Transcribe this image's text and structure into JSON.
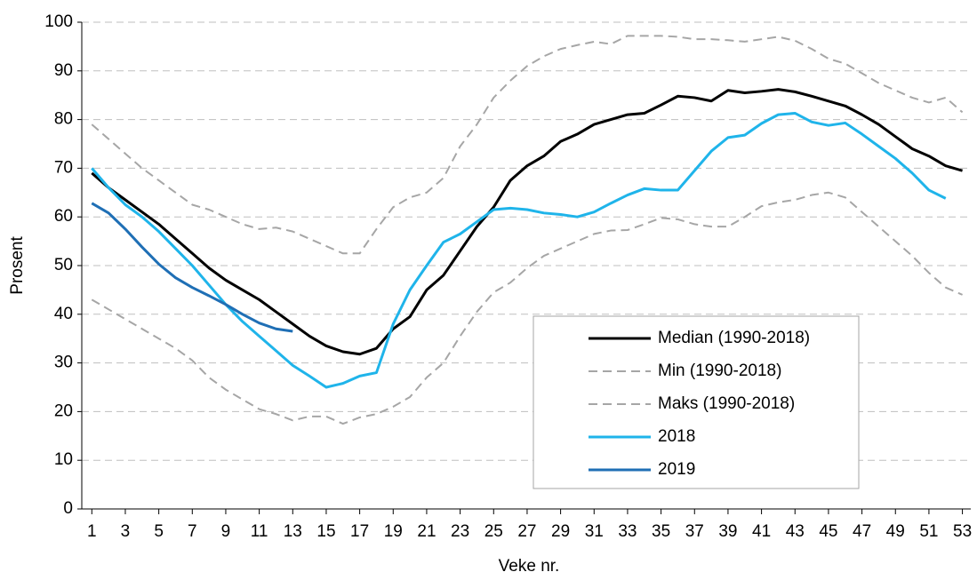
{
  "chart_data": {
    "type": "line",
    "x_label": "Veke nr.",
    "y_label": "Prosent",
    "x": [
      1,
      2,
      3,
      4,
      5,
      6,
      7,
      8,
      9,
      10,
      11,
      12,
      13,
      14,
      15,
      16,
      17,
      18,
      19,
      20,
      21,
      22,
      23,
      24,
      25,
      26,
      27,
      28,
      29,
      30,
      31,
      32,
      33,
      34,
      35,
      36,
      37,
      38,
      39,
      40,
      41,
      42,
      43,
      44,
      45,
      46,
      47,
      48,
      49,
      50,
      51,
      52,
      53
    ],
    "xlim": [
      0.4,
      53.5
    ],
    "xticks": [
      1,
      3,
      5,
      7,
      9,
      11,
      13,
      15,
      17,
      19,
      21,
      23,
      25,
      27,
      29,
      31,
      33,
      35,
      37,
      39,
      41,
      43,
      45,
      47,
      49,
      51,
      53
    ],
    "ylim": [
      0,
      100
    ],
    "yticks": [
      0,
      10,
      20,
      30,
      40,
      50,
      60,
      70,
      80,
      90,
      100
    ],
    "grid": true,
    "legend": "lower right",
    "series": [
      {
        "name": "Median (1990-2018)",
        "color": "#000000",
        "dashed": false,
        "values": [
          69,
          66,
          63.5,
          61,
          58.5,
          55.5,
          52.5,
          49.5,
          47,
          45,
          43,
          40.5,
          38,
          35.5,
          33.5,
          32.3,
          31.8,
          33,
          37,
          39.5,
          45,
          48,
          53,
          58,
          62,
          67.5,
          70.5,
          72.5,
          75.5,
          77,
          79,
          80,
          81,
          81.3,
          83,
          84.8,
          84.5,
          83.8,
          86,
          85.5,
          85.8,
          86.2,
          85.7,
          84.8,
          83.8,
          82.8,
          81,
          79,
          76.5,
          74,
          72.5,
          70.5,
          69.5
        ]
      },
      {
        "name": "Min (1990-2018)",
        "color": "#a6a6a6",
        "dashed": true,
        "values": [
          43,
          41,
          39,
          37,
          35,
          33,
          30.5,
          27,
          24.5,
          22.5,
          20.5,
          19.5,
          18.2,
          19,
          19,
          17.5,
          18.8,
          19.5,
          21,
          23,
          27,
          30,
          35.5,
          40.5,
          44.5,
          46.5,
          49.5,
          52,
          53.5,
          55,
          56.5,
          57.2,
          57.3,
          58.5,
          59.8,
          59.5,
          58.5,
          58,
          58,
          60,
          62.2,
          63,
          63.5,
          64.5,
          65,
          64,
          61,
          58,
          55,
          52,
          48.5,
          45.5,
          44
        ]
      },
      {
        "name": "Maks (1990-2018)",
        "color": "#a6a6a6",
        "dashed": true,
        "values": [
          79,
          76,
          73,
          70,
          67.5,
          65,
          62.5,
          61.5,
          60,
          58.5,
          57.5,
          57.8,
          57,
          55.5,
          54,
          52.5,
          52.5,
          57.5,
          62,
          64,
          65,
          68,
          74.5,
          79,
          84.5,
          88,
          91,
          93,
          94.5,
          95.3,
          96,
          95.5,
          97.2,
          97.2,
          97.2,
          97,
          96.5,
          96.5,
          96.3,
          96,
          96.5,
          97,
          96.2,
          94.5,
          92.5,
          91.5,
          89.5,
          87.5,
          86,
          84.5,
          83.5,
          84.5,
          81.5
        ]
      },
      {
        "name": "2018",
        "color": "#1fb4ea",
        "dashed": false,
        "values": [
          70,
          66,
          62.5,
          60,
          57,
          53.5,
          50,
          46,
          42,
          38.5,
          35.5,
          32.5,
          29.5,
          27.3,
          25,
          25.8,
          27.3,
          28,
          38,
          45,
          50,
          54.8,
          56.5,
          59,
          61.5,
          61.8,
          61.5,
          60.8,
          60.5,
          60,
          61,
          62.8,
          64.5,
          65.8,
          65.5,
          65.5,
          69.5,
          73.5,
          76.3,
          76.8,
          79.2,
          81,
          81.3,
          79.5,
          78.8,
          79.3,
          77,
          74.5,
          72,
          69,
          65.5,
          63.8,
          null
        ]
      },
      {
        "name": "2019",
        "color": "#1f6fb5",
        "dashed": false,
        "values": [
          62.8,
          60.8,
          57.5,
          53.8,
          50.3,
          47.5,
          45.5,
          43.8,
          42,
          40,
          38.2,
          37,
          36.5,
          null,
          null,
          null,
          null,
          null,
          null,
          null,
          null,
          null,
          null,
          null,
          null,
          null,
          null,
          null,
          null,
          null,
          null,
          null,
          null,
          null,
          null,
          null,
          null,
          null,
          null,
          null,
          null,
          null,
          null,
          null,
          null,
          null,
          null,
          null,
          null,
          null,
          null,
          null,
          null
        ]
      }
    ]
  }
}
